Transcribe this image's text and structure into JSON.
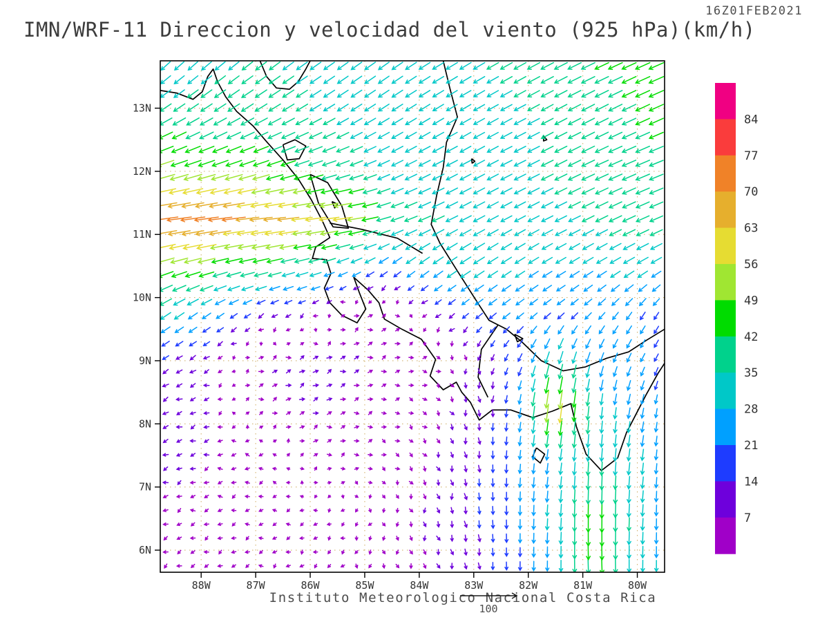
{
  "header": {
    "title": "IMN/WRF-11 Direccion y velocidad del viento (925 hPa)(km/h)",
    "timestamp": "16Z01FEB2021"
  },
  "footer": {
    "caption": "Instituto Meteorologico Nacional Costa Rica",
    "ref_label": "100"
  },
  "chart_data": {
    "type": "vector_field",
    "variable": "wind direction and speed",
    "level": "925 hPa",
    "units": "km/h",
    "lon_range": [
      -88.75,
      -79.5
    ],
    "lat_range": [
      5.65,
      13.75
    ],
    "x_ticks": [
      {
        "lon": -88,
        "label": "88W"
      },
      {
        "lon": -87,
        "label": "87W"
      },
      {
        "lon": -86,
        "label": "86W"
      },
      {
        "lon": -85,
        "label": "85W"
      },
      {
        "lon": -84,
        "label": "84W"
      },
      {
        "lon": -83,
        "label": "83W"
      },
      {
        "lon": -82,
        "label": "82W"
      },
      {
        "lon": -81,
        "label": "81W"
      },
      {
        "lon": -80,
        "label": "80W"
      }
    ],
    "y_ticks": [
      {
        "lat": 13,
        "label": "13N"
      },
      {
        "lat": 12,
        "label": "12N"
      },
      {
        "lat": 11,
        "label": "11N"
      },
      {
        "lat": 10,
        "label": "10N"
      },
      {
        "lat": 9,
        "label": "9N"
      },
      {
        "lat": 8,
        "label": "8N"
      },
      {
        "lat": 7,
        "label": "7N"
      },
      {
        "lat": 6,
        "label": "6N"
      }
    ],
    "colorbar": {
      "labels_top_to_bottom": [
        "84",
        "77",
        "70",
        "63",
        "56",
        "49",
        "42",
        "35",
        "28",
        "21",
        "14",
        "7"
      ],
      "thresholds": [
        7,
        14,
        21,
        28,
        35,
        42,
        49,
        56,
        63,
        70,
        77,
        84
      ],
      "colors_low_to_high": [
        "#a000c8",
        "#6e00dc",
        "#1e3cff",
        "#00a0ff",
        "#00c8c8",
        "#00d28c",
        "#00dc00",
        "#a0e632",
        "#e6dc32",
        "#e6af2d",
        "#f08228",
        "#fa3c3c",
        "#f00082"
      ]
    },
    "reference_vector_kmh": 100,
    "wind_grid": {
      "lats": [
        5.5,
        6.5,
        7.5,
        8.25,
        9,
        9.75,
        10.5,
        11.25,
        12,
        13,
        13.75
      ],
      "lons": [
        -89,
        -88,
        -87,
        -86,
        -85.25,
        -84.5,
        -83.75,
        -83,
        -82.25,
        -81.5,
        -80.75,
        -80,
        -79.5
      ],
      "u": [
        [
          -5,
          -5,
          -4,
          -3,
          -2,
          2,
          3,
          2,
          0,
          0,
          2,
          0,
          0
        ],
        [
          -6,
          -5,
          -4,
          -3,
          -2,
          0,
          2,
          2,
          0,
          -2,
          0,
          -2,
          0
        ],
        [
          -8,
          -7,
          -5,
          4,
          5,
          4,
          3,
          2,
          -2,
          -4,
          -2,
          -4,
          -2
        ],
        [
          -10,
          -8,
          5,
          7,
          6,
          5,
          4,
          2,
          -3,
          -8,
          -3,
          -5,
          -3
        ],
        [
          -12,
          -10,
          6,
          8,
          7,
          6,
          5,
          0,
          -8,
          -10,
          -8,
          -10,
          -8
        ],
        [
          -30,
          -22,
          -12,
          -6,
          5,
          6,
          -8,
          -15,
          -18,
          -15,
          -15,
          -12,
          -10
        ],
        [
          -45,
          -45,
          -42,
          -35,
          -25,
          -20,
          -25,
          -28,
          -25,
          -25,
          -25,
          -28,
          -25
        ],
        [
          -75,
          -72,
          -68,
          -60,
          -55,
          -35,
          -32,
          -30,
          -28,
          -30,
          -32,
          -35,
          -35
        ],
        [
          -50,
          -48,
          -45,
          -40,
          -35,
          -30,
          -30,
          -28,
          -30,
          -32,
          -35,
          -38,
          -38
        ],
        [
          -30,
          -30,
          -32,
          -30,
          -28,
          -28,
          -28,
          -28,
          -30,
          -32,
          -35,
          -38,
          -40
        ],
        [
          -22,
          -25,
          -28,
          -28,
          -28,
          -28,
          -30,
          -30,
          -32,
          -35,
          -38,
          -40,
          -42
        ]
      ],
      "v": [
        [
          -4,
          -3,
          -2,
          -3,
          -4,
          -5,
          -6,
          -10,
          -18,
          -25,
          -45,
          -30,
          -28
        ],
        [
          -3,
          -2,
          -1,
          -1,
          -2,
          -4,
          -8,
          -14,
          -22,
          -30,
          -48,
          -32,
          -25
        ],
        [
          -4,
          -2,
          0,
          2,
          1,
          -2,
          -6,
          -12,
          -20,
          -28,
          -35,
          -30,
          -22
        ],
        [
          -5,
          -3,
          2,
          3,
          2,
          0,
          -4,
          -10,
          -18,
          -64,
          -30,
          -25,
          -20
        ],
        [
          -8,
          -6,
          3,
          4,
          3,
          2,
          0,
          -8,
          -15,
          -35,
          -25,
          -20,
          -15
        ],
        [
          -20,
          -15,
          -8,
          -4,
          2,
          3,
          -6,
          -12,
          -14,
          -12,
          -15,
          -18,
          -15
        ],
        [
          -15,
          -12,
          -10,
          -10,
          -12,
          -15,
          -18,
          -18,
          -16,
          -15,
          -15,
          -16,
          -15
        ],
        [
          -10,
          -10,
          -8,
          -8,
          -8,
          -12,
          -15,
          -16,
          -15,
          -15,
          -16,
          -16,
          -15
        ],
        [
          -15,
          -15,
          -14,
          -12,
          -12,
          -14,
          -15,
          -15,
          -15,
          -16,
          -16,
          -16,
          -15
        ],
        [
          -20,
          -20,
          -20,
          -18,
          -18,
          -18,
          -17,
          -16,
          -16,
          -17,
          -18,
          -18,
          -18
        ],
        [
          -22,
          -22,
          -22,
          -20,
          -20,
          -20,
          -18,
          -18,
          -18,
          -18,
          -18,
          -18,
          -18
        ]
      ]
    },
    "coastline": [
      {
        "name": "pacific-mainland",
        "pts": [
          [
            -88.75,
            13.28
          ],
          [
            -88.45,
            13.24
          ],
          [
            -88.15,
            13.14
          ],
          [
            -87.98,
            13.26
          ],
          [
            -87.88,
            13.5
          ],
          [
            -87.78,
            13.62
          ],
          [
            -87.7,
            13.42
          ],
          [
            -87.55,
            13.18
          ],
          [
            -87.35,
            12.95
          ],
          [
            -87.05,
            12.72
          ],
          [
            -86.78,
            12.45
          ],
          [
            -86.5,
            12.18
          ],
          [
            -86.22,
            11.88
          ],
          [
            -85.98,
            11.55
          ],
          [
            -85.78,
            11.22
          ],
          [
            -85.64,
            10.95
          ],
          [
            -85.9,
            10.8
          ],
          [
            -85.96,
            10.62
          ],
          [
            -85.7,
            10.6
          ],
          [
            -85.62,
            10.38
          ],
          [
            -85.74,
            10.15
          ],
          [
            -85.64,
            9.92
          ],
          [
            -85.42,
            9.72
          ],
          [
            -85.14,
            9.6
          ],
          [
            -84.98,
            9.82
          ],
          [
            -85.1,
            10.08
          ],
          [
            -85.2,
            10.32
          ],
          [
            -84.94,
            10.12
          ],
          [
            -84.74,
            9.92
          ],
          [
            -84.64,
            9.66
          ],
          [
            -84.32,
            9.5
          ],
          [
            -83.96,
            9.34
          ],
          [
            -83.7,
            9.02
          ],
          [
            -83.8,
            8.76
          ],
          [
            -83.56,
            8.54
          ],
          [
            -83.32,
            8.66
          ],
          [
            -83.22,
            8.5
          ],
          [
            -83.06,
            8.34
          ],
          [
            -82.9,
            8.06
          ],
          [
            -82.66,
            8.22
          ],
          [
            -82.32,
            8.22
          ],
          [
            -81.92,
            8.1
          ],
          [
            -81.56,
            8.2
          ],
          [
            -81.22,
            8.32
          ],
          [
            -81.12,
            7.96
          ],
          [
            -80.94,
            7.52
          ],
          [
            -80.66,
            7.26
          ],
          [
            -80.36,
            7.46
          ],
          [
            -80.2,
            7.86
          ],
          [
            -80.02,
            8.16
          ],
          [
            -79.84,
            8.46
          ],
          [
            -79.62,
            8.8
          ],
          [
            -79.5,
            8.96
          ]
        ]
      },
      {
        "name": "caribbean-mainland",
        "pts": [
          [
            -83.56,
            13.75
          ],
          [
            -83.44,
            13.32
          ],
          [
            -83.3,
            12.86
          ],
          [
            -83.5,
            12.46
          ],
          [
            -83.56,
            12.06
          ],
          [
            -83.68,
            11.62
          ],
          [
            -83.78,
            11.16
          ],
          [
            -83.62,
            10.86
          ],
          [
            -83.3,
            10.42
          ],
          [
            -82.96,
            9.96
          ],
          [
            -82.72,
            9.64
          ],
          [
            -82.4,
            9.5
          ],
          [
            -82.12,
            9.3
          ],
          [
            -81.76,
            9.0
          ],
          [
            -81.36,
            8.84
          ],
          [
            -80.96,
            8.9
          ],
          [
            -80.56,
            9.04
          ],
          [
            -80.16,
            9.14
          ],
          [
            -79.84,
            9.32
          ],
          [
            -79.5,
            9.5
          ]
        ]
      },
      {
        "name": "border-nicaragua-honduras",
        "pts": [
          [
            -86.92,
            13.75
          ],
          [
            -86.8,
            13.5
          ],
          [
            -86.62,
            13.32
          ],
          [
            -86.38,
            13.3
          ],
          [
            -86.22,
            13.42
          ],
          [
            -86.08,
            13.62
          ],
          [
            -86.0,
            13.75
          ]
        ]
      },
      {
        "name": "border-costarica-nicaragua",
        "pts": [
          [
            -85.64,
            11.18
          ],
          [
            -85.05,
            11.08
          ],
          [
            -84.4,
            10.94
          ],
          [
            -83.94,
            10.7
          ]
        ]
      },
      {
        "name": "border-costarica-panama",
        "pts": [
          [
            -82.56,
            9.56
          ],
          [
            -82.86,
            9.18
          ],
          [
            -82.92,
            8.74
          ],
          [
            -82.74,
            8.42
          ]
        ]
      },
      {
        "name": "lake-managua",
        "pts": [
          [
            -86.5,
            12.42
          ],
          [
            -86.28,
            12.5
          ],
          [
            -86.08,
            12.4
          ],
          [
            -86.2,
            12.2
          ],
          [
            -86.42,
            12.18
          ],
          [
            -86.5,
            12.42
          ]
        ]
      },
      {
        "name": "lake-nicaragua",
        "pts": [
          [
            -86.0,
            11.95
          ],
          [
            -85.68,
            11.82
          ],
          [
            -85.42,
            11.45
          ],
          [
            -85.3,
            11.1
          ],
          [
            -85.58,
            11.12
          ],
          [
            -85.85,
            11.5
          ],
          [
            -86.0,
            11.95
          ]
        ]
      },
      {
        "name": "island-ometepe",
        "pts": [
          [
            -85.6,
            11.52
          ],
          [
            -85.5,
            11.48
          ],
          [
            -85.55,
            11.42
          ],
          [
            -85.6,
            11.52
          ]
        ]
      },
      {
        "name": "island-coiba",
        "pts": [
          [
            -81.85,
            7.62
          ],
          [
            -81.7,
            7.52
          ],
          [
            -81.78,
            7.38
          ],
          [
            -81.92,
            7.48
          ],
          [
            -81.85,
            7.62
          ]
        ]
      },
      {
        "name": "island-bocas",
        "pts": [
          [
            -82.25,
            9.42
          ],
          [
            -82.1,
            9.35
          ],
          [
            -82.2,
            9.3
          ],
          [
            -82.25,
            9.42
          ]
        ]
      },
      {
        "name": "island-san-andres",
        "pts": [
          [
            -81.72,
            12.56
          ],
          [
            -81.66,
            12.5
          ],
          [
            -81.72,
            12.48
          ],
          [
            -81.72,
            12.56
          ]
        ]
      },
      {
        "name": "island-corn",
        "pts": [
          [
            -83.04,
            12.2
          ],
          [
            -82.98,
            12.16
          ],
          [
            -83.03,
            12.13
          ],
          [
            -83.04,
            12.2
          ]
        ]
      }
    ]
  }
}
